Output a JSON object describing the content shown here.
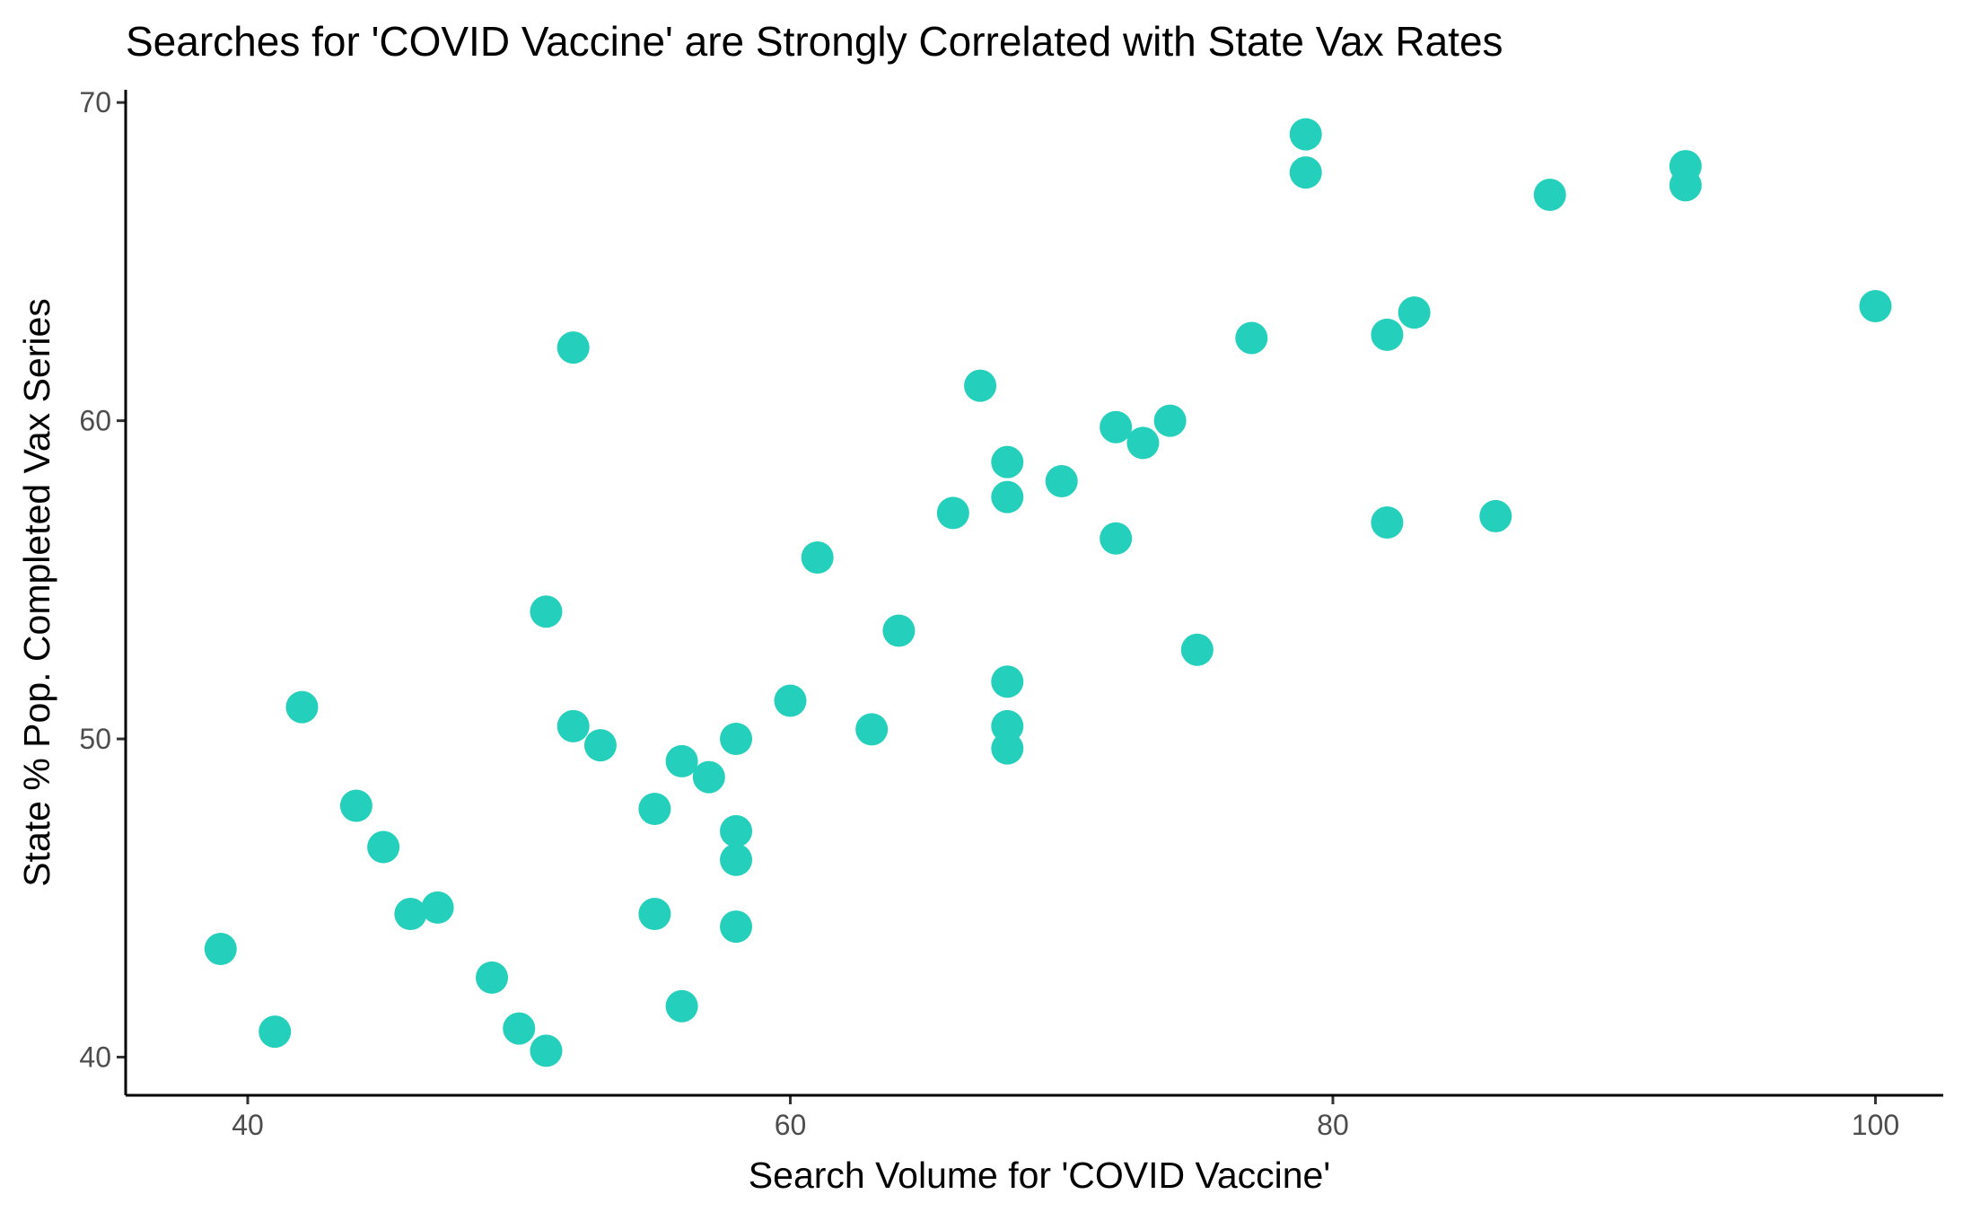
{
  "chart_data": {
    "type": "scatter",
    "title": "Searches for 'COVID Vaccine' are Strongly Correlated with State Vax Rates",
    "xlabel": "Search Volume for 'COVID Vaccine'",
    "ylabel": "State % Pop. Completed Vax Series",
    "xlim": [
      35.5,
      102.5
    ],
    "ylim": [
      38.8,
      70.4
    ],
    "xticks": [
      40,
      60,
      80,
      100
    ],
    "yticks": [
      40,
      50,
      60,
      70
    ],
    "grid": false,
    "point_color": "#24d0bb",
    "points": [
      {
        "x": 39,
        "y": 43.4
      },
      {
        "x": 41,
        "y": 40.8
      },
      {
        "x": 42,
        "y": 51.0
      },
      {
        "x": 44,
        "y": 47.9
      },
      {
        "x": 45,
        "y": 46.6
      },
      {
        "x": 46,
        "y": 44.5
      },
      {
        "x": 47,
        "y": 44.7
      },
      {
        "x": 49,
        "y": 42.5
      },
      {
        "x": 50,
        "y": 40.9
      },
      {
        "x": 51,
        "y": 40.2
      },
      {
        "x": 51,
        "y": 54.0
      },
      {
        "x": 52,
        "y": 50.4
      },
      {
        "x": 52,
        "y": 62.3
      },
      {
        "x": 53,
        "y": 49.8
      },
      {
        "x": 55,
        "y": 47.8
      },
      {
        "x": 55,
        "y": 44.5
      },
      {
        "x": 56,
        "y": 49.3
      },
      {
        "x": 56,
        "y": 41.6
      },
      {
        "x": 57,
        "y": 48.8
      },
      {
        "x": 58,
        "y": 50.0
      },
      {
        "x": 58,
        "y": 47.1
      },
      {
        "x": 58,
        "y": 46.2
      },
      {
        "x": 58,
        "y": 44.1
      },
      {
        "x": 60,
        "y": 51.2
      },
      {
        "x": 61,
        "y": 55.7
      },
      {
        "x": 63,
        "y": 50.3
      },
      {
        "x": 64,
        "y": 53.4
      },
      {
        "x": 66,
        "y": 57.1
      },
      {
        "x": 67,
        "y": 61.1
      },
      {
        "x": 68,
        "y": 58.7
      },
      {
        "x": 68,
        "y": 57.6
      },
      {
        "x": 68,
        "y": 51.8
      },
      {
        "x": 68,
        "y": 50.4
      },
      {
        "x": 68,
        "y": 49.7
      },
      {
        "x": 70,
        "y": 58.1
      },
      {
        "x": 72,
        "y": 59.8
      },
      {
        "x": 72,
        "y": 56.3
      },
      {
        "x": 73,
        "y": 59.3
      },
      {
        "x": 74,
        "y": 60.0
      },
      {
        "x": 75,
        "y": 52.8
      },
      {
        "x": 77,
        "y": 62.6
      },
      {
        "x": 79,
        "y": 69.0
      },
      {
        "x": 79,
        "y": 67.8
      },
      {
        "x": 82,
        "y": 62.7
      },
      {
        "x": 82,
        "y": 56.8
      },
      {
        "x": 83,
        "y": 63.4
      },
      {
        "x": 86,
        "y": 57.0
      },
      {
        "x": 88,
        "y": 67.1
      },
      {
        "x": 93,
        "y": 68.0
      },
      {
        "x": 93,
        "y": 67.4
      },
      {
        "x": 100,
        "y": 63.6
      }
    ]
  }
}
